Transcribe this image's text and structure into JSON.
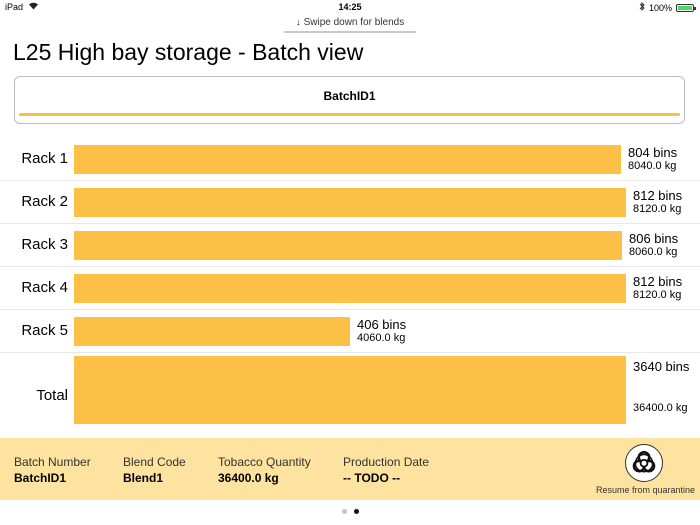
{
  "status_bar": {
    "device": "iPad",
    "time": "14:25",
    "battery": "100%"
  },
  "swipe_hint": "↓ Swipe down for blends",
  "page_title": "L25 High bay storage - Batch view",
  "batch_card": {
    "label": "BatchID1"
  },
  "rows": [
    {
      "label": "Rack 1",
      "bins": "804 bins",
      "kg": "8040.0 kg",
      "value": 804
    },
    {
      "label": "Rack 2",
      "bins": "812 bins",
      "kg": "8120.0 kg",
      "value": 812
    },
    {
      "label": "Rack 3",
      "bins": "806 bins",
      "kg": "8060.0 kg",
      "value": 806
    },
    {
      "label": "Rack 4",
      "bins": "812 bins",
      "kg": "8120.0 kg",
      "value": 812
    },
    {
      "label": "Rack 5",
      "bins": "406 bins",
      "kg": "4060.0 kg",
      "value": 406
    }
  ],
  "total": {
    "label": "Total",
    "bins": "3640 bins",
    "kg": "36400.0 kg",
    "value": 3640
  },
  "info": {
    "batch_number_label": "Batch Number",
    "batch_number": "BatchID1",
    "blend_code_label": "Blend Code",
    "blend_code": "Blend1",
    "tobacco_quantity_label": "Tobacco Quantity",
    "tobacco_quantity": "36400.0 kg",
    "production_date_label": "Production Date",
    "production_date": "-- TODO --"
  },
  "quarantine": {
    "label": "Resume from quarantine",
    "icon": "biohazard-icon"
  },
  "page_indicator": {
    "pages": 2,
    "current": 2
  },
  "colors": {
    "bar": "#fcc046",
    "panel": "#fde2a0",
    "accent_line": "#f6c044"
  }
}
